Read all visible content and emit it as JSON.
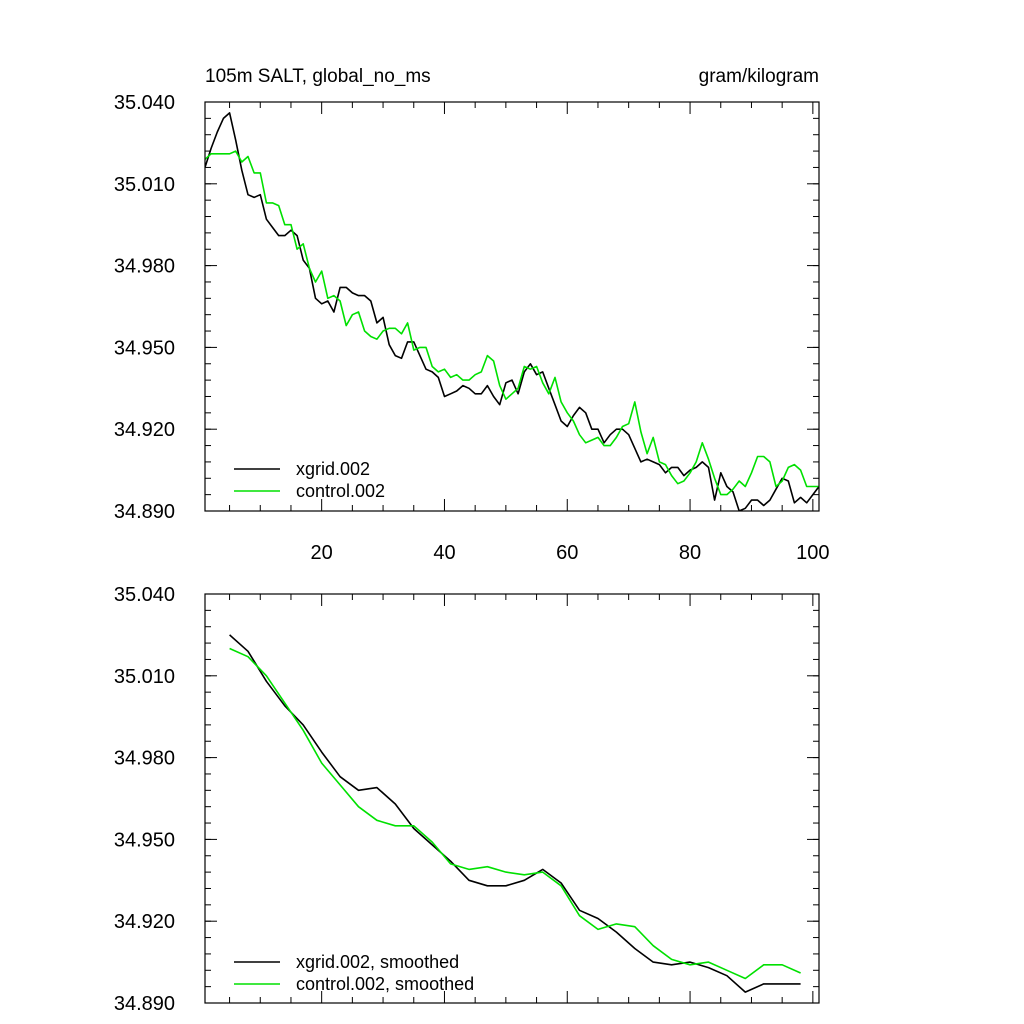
{
  "chart_data": [
    {
      "type": "line",
      "title": "105m SALT, global_no_ms",
      "units": "gram/kilogram",
      "xlim": [
        1,
        101
      ],
      "ylim": [
        34.89,
        35.04
      ],
      "xticks": [
        20,
        40,
        60,
        80,
        100
      ],
      "xtick_labels": [
        "20",
        "40",
        "60",
        "80",
        "100"
      ],
      "yticks": [
        34.89,
        34.92,
        34.95,
        34.98,
        35.01,
        35.04
      ],
      "ytick_labels": [
        "34.890",
        "34.920",
        "34.950",
        "34.980",
        "35.010",
        "35.040"
      ],
      "legend_position": "bottom-left",
      "series": [
        {
          "name": "xgrid.002",
          "color": "#000000",
          "x": [
            1,
            2,
            3,
            4,
            5,
            6,
            7,
            8,
            9,
            10,
            11,
            12,
            13,
            14,
            15,
            16,
            17,
            18,
            19,
            20,
            21,
            22,
            23,
            24,
            25,
            26,
            27,
            28,
            29,
            30,
            31,
            32,
            33,
            34,
            35,
            36,
            37,
            38,
            39,
            40,
            41,
            42,
            43,
            44,
            45,
            46,
            47,
            48,
            49,
            50,
            51,
            52,
            53,
            54,
            55,
            56,
            57,
            58,
            59,
            60,
            61,
            62,
            63,
            64,
            65,
            66,
            67,
            68,
            69,
            70,
            71,
            72,
            73,
            74,
            75,
            76,
            77,
            78,
            79,
            80,
            81,
            82,
            83,
            84,
            85,
            86,
            87,
            88,
            89,
            90,
            91,
            92,
            93,
            94,
            95,
            96,
            97,
            98,
            99,
            100,
            101
          ],
          "values": [
            35.016,
            35.023,
            35.029,
            35.034,
            35.036,
            35.026,
            35.015,
            35.006,
            35.005,
            35.006,
            34.997,
            34.994,
            34.991,
            34.991,
            34.993,
            34.991,
            34.982,
            34.979,
            34.968,
            34.966,
            34.967,
            34.963,
            34.972,
            34.972,
            34.97,
            34.969,
            34.969,
            34.967,
            34.959,
            34.961,
            34.951,
            34.947,
            34.946,
            34.952,
            34.952,
            34.947,
            34.942,
            34.941,
            34.939,
            34.932,
            34.933,
            34.934,
            34.936,
            34.935,
            34.933,
            34.933,
            34.936,
            34.932,
            34.929,
            34.937,
            34.938,
            34.933,
            34.941,
            34.944,
            34.94,
            34.941,
            34.935,
            34.929,
            34.923,
            34.921,
            34.925,
            34.928,
            34.926,
            34.92,
            34.92,
            34.915,
            34.918,
            34.92,
            34.92,
            34.918,
            34.913,
            34.908,
            34.909,
            34.908,
            34.907,
            34.904,
            34.906,
            34.906,
            34.903,
            34.905,
            34.906,
            34.908,
            34.906,
            34.894,
            34.904,
            34.899,
            34.897,
            34.89,
            34.891,
            34.894,
            34.894,
            34.892,
            34.894,
            34.898,
            34.902,
            34.901,
            34.893,
            34.895,
            34.893,
            34.896,
            34.899
          ]
        },
        {
          "name": "control.002",
          "color": "#00e000",
          "x": [
            1,
            2,
            3,
            4,
            5,
            6,
            7,
            8,
            9,
            10,
            11,
            12,
            13,
            14,
            15,
            16,
            17,
            18,
            19,
            20,
            21,
            22,
            23,
            24,
            25,
            26,
            27,
            28,
            29,
            30,
            31,
            32,
            33,
            34,
            35,
            36,
            37,
            38,
            39,
            40,
            41,
            42,
            43,
            44,
            45,
            46,
            47,
            48,
            49,
            50,
            51,
            52,
            53,
            54,
            55,
            56,
            57,
            58,
            59,
            60,
            61,
            62,
            63,
            64,
            65,
            66,
            67,
            68,
            69,
            70,
            71,
            72,
            73,
            74,
            75,
            76,
            77,
            78,
            79,
            80,
            81,
            82,
            83,
            84,
            85,
            86,
            87,
            88,
            89,
            90,
            91,
            92,
            93,
            94,
            95,
            96,
            97,
            98,
            99,
            100,
            101
          ],
          "values": [
            35.019,
            35.021,
            35.021,
            35.021,
            35.021,
            35.022,
            35.018,
            35.02,
            35.014,
            35.014,
            35.003,
            35.003,
            35.002,
            34.995,
            34.995,
            34.986,
            34.988,
            34.979,
            34.974,
            34.978,
            34.968,
            34.969,
            34.967,
            34.958,
            34.962,
            34.963,
            34.956,
            34.954,
            34.953,
            34.956,
            34.957,
            34.957,
            34.955,
            34.959,
            34.949,
            34.95,
            34.95,
            34.943,
            34.941,
            34.942,
            34.939,
            34.94,
            34.938,
            34.938,
            34.94,
            34.941,
            34.947,
            34.945,
            34.936,
            34.931,
            34.933,
            34.935,
            34.943,
            34.942,
            34.943,
            34.937,
            34.933,
            34.939,
            34.93,
            34.926,
            34.923,
            34.918,
            34.915,
            34.916,
            34.917,
            34.914,
            34.914,
            34.917,
            34.921,
            34.922,
            34.93,
            34.919,
            34.911,
            34.917,
            34.908,
            34.907,
            34.903,
            34.9,
            34.901,
            34.904,
            34.908,
            34.915,
            34.909,
            34.902,
            34.896,
            34.896,
            34.898,
            34.901,
            34.899,
            34.904,
            34.91,
            34.91,
            34.908,
            34.899,
            34.901,
            34.906,
            34.907,
            34.905,
            34.899,
            34.899,
            34.899
          ]
        }
      ]
    },
    {
      "type": "line",
      "xlim": [
        1,
        101
      ],
      "ylim": [
        34.89,
        35.04
      ],
      "yticks": [
        34.89,
        34.92,
        34.95,
        34.98,
        35.01,
        35.04
      ],
      "ytick_labels": [
        "34.890",
        "34.920",
        "34.950",
        "34.980",
        "35.010",
        "35.040"
      ],
      "legend_position": "bottom-left",
      "series": [
        {
          "name": "xgrid.002, smoothed",
          "color": "#000000",
          "x": [
            5,
            8,
            11,
            14,
            17,
            20,
            23,
            26,
            29,
            32,
            35,
            38,
            41,
            44,
            47,
            50,
            53,
            56,
            59,
            62,
            65,
            68,
            71,
            74,
            77,
            80,
            83,
            86,
            89,
            92,
            95,
            98
          ],
          "values": [
            35.025,
            35.019,
            35.008,
            34.999,
            34.992,
            34.982,
            34.973,
            34.968,
            34.969,
            34.963,
            34.954,
            34.948,
            34.942,
            34.935,
            34.933,
            34.933,
            34.935,
            34.939,
            34.934,
            34.924,
            34.921,
            34.916,
            34.91,
            34.905,
            34.904,
            34.905,
            34.903,
            34.9,
            34.894,
            34.897,
            34.897,
            34.897
          ]
        },
        {
          "name": "control.002, smoothed",
          "color": "#00e000",
          "x": [
            5,
            8,
            11,
            14,
            17,
            20,
            23,
            26,
            29,
            32,
            35,
            38,
            41,
            44,
            47,
            50,
            53,
            56,
            59,
            62,
            65,
            68,
            71,
            74,
            77,
            80,
            83,
            86,
            89,
            92,
            95,
            98
          ],
          "values": [
            35.02,
            35.017,
            35.01,
            35.0,
            34.99,
            34.978,
            34.97,
            34.962,
            34.957,
            34.955,
            34.955,
            34.949,
            34.941,
            34.939,
            34.94,
            34.938,
            34.937,
            34.938,
            34.933,
            34.922,
            34.917,
            34.919,
            34.918,
            34.911,
            34.906,
            34.904,
            34.905,
            34.902,
            34.899,
            34.904,
            34.904,
            34.901
          ]
        }
      ]
    }
  ]
}
